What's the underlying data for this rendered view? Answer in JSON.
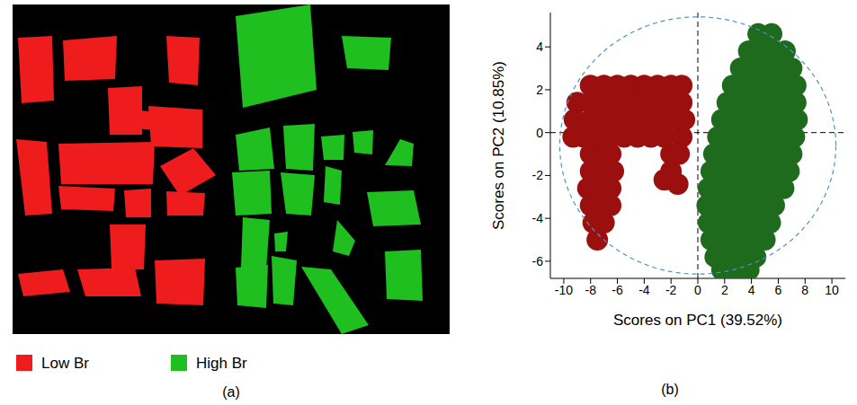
{
  "chart_data": [
    {
      "type": "image",
      "panel": "(a)",
      "legend": "bottom",
      "series": [
        {
          "name": "Low Br",
          "color": "#ee1c1c"
        },
        {
          "name": "High Br",
          "color": "#1fbf1f"
        }
      ]
    },
    {
      "type": "scatter",
      "panel": "(b)",
      "x_label": "Scores on PC1 (39.52%)",
      "y_label": "Scores on PC2 (10.85%)",
      "xlim": [
        -11,
        11
      ],
      "ylim": [
        -6.8,
        5.6
      ],
      "xticks": [
        -10,
        -8,
        -6,
        -4,
        -2,
        0,
        2,
        4,
        6,
        8,
        10
      ],
      "yticks": [
        -6,
        -4,
        -2,
        0,
        2,
        4
      ],
      "reference_lines": {
        "x": 0,
        "y": 0
      },
      "confidence_ellipse": {
        "cx": 0,
        "cy": -0.6,
        "rx": 10.3,
        "ry": 6.0
      },
      "series": [
        {
          "name": "Low Br",
          "color": "#9b0f0f",
          "values": [
            [
              -8,
              2.2
            ],
            [
              -7,
              2.2
            ],
            [
              -6,
              2.2
            ],
            [
              -5,
              2.2
            ],
            [
              -4,
              2.2
            ],
            [
              -3,
              2.2
            ],
            [
              -2,
              2.2
            ],
            [
              -1.2,
              2.2
            ],
            [
              -9,
              1.4
            ],
            [
              -8,
              1.4
            ],
            [
              -7,
              1.4
            ],
            [
              -6,
              1.4
            ],
            [
              -5,
              1.4
            ],
            [
              -4,
              1.4
            ],
            [
              -3,
              1.4
            ],
            [
              -2,
              1.4
            ],
            [
              -1.2,
              1.4
            ],
            [
              -9.2,
              0.6
            ],
            [
              -8,
              0.6
            ],
            [
              -7,
              0.6
            ],
            [
              -6,
              0.6
            ],
            [
              -5,
              0.6
            ],
            [
              -4,
              0.6
            ],
            [
              -3,
              0.6
            ],
            [
              -2,
              0.6
            ],
            [
              -1,
              0.6
            ],
            [
              -9.3,
              -0.2
            ],
            [
              -8.5,
              -0.2
            ],
            [
              -7.5,
              -0.2
            ],
            [
              -6.5,
              -0.2
            ],
            [
              -5.5,
              -0.2
            ],
            [
              -4.5,
              -0.2
            ],
            [
              -3.5,
              -0.2
            ],
            [
              -2.5,
              -0.2
            ],
            [
              -1.2,
              -0.2
            ],
            [
              -8,
              -1.0
            ],
            [
              -7,
              -1.0
            ],
            [
              -6.5,
              -1.0
            ],
            [
              -2,
              -1.0
            ],
            [
              -1.4,
              -1.0
            ],
            [
              -8,
              -1.8
            ],
            [
              -7,
              -1.8
            ],
            [
              -6.3,
              -1.8
            ],
            [
              -8.2,
              -2.6
            ],
            [
              -7.3,
              -2.6
            ],
            [
              -6.5,
              -2.6
            ],
            [
              -8,
              -3.4
            ],
            [
              -7.2,
              -3.4
            ],
            [
              -6.5,
              -3.4
            ],
            [
              -7.8,
              -4.2
            ],
            [
              -7,
              -4.2
            ],
            [
              -7.5,
              -5.0
            ],
            [
              -2,
              -1.8
            ],
            [
              -1.5,
              -2.4
            ],
            [
              -2.5,
              -2.2
            ]
          ]
        },
        {
          "name": "High Br",
          "color": "#1e6b1e",
          "values": [
            [
              4.5,
              4.6
            ],
            [
              5.5,
              4.6
            ],
            [
              3.8,
              3.8
            ],
            [
              4.8,
              3.8
            ],
            [
              5.8,
              3.8
            ],
            [
              6.5,
              3.8
            ],
            [
              3.2,
              3.0
            ],
            [
              4.2,
              3.0
            ],
            [
              5.2,
              3.0
            ],
            [
              6.2,
              3.0
            ],
            [
              7,
              3.0
            ],
            [
              2.6,
              2.2
            ],
            [
              3.6,
              2.2
            ],
            [
              4.6,
              2.2
            ],
            [
              5.6,
              2.2
            ],
            [
              6.6,
              2.2
            ],
            [
              7.3,
              2.2
            ],
            [
              2.2,
              1.4
            ],
            [
              3.2,
              1.4
            ],
            [
              4.2,
              1.4
            ],
            [
              5.2,
              1.4
            ],
            [
              6.2,
              1.4
            ],
            [
              7.3,
              1.4
            ],
            [
              1.8,
              0.6
            ],
            [
              2.8,
              0.6
            ],
            [
              3.8,
              0.6
            ],
            [
              4.8,
              0.6
            ],
            [
              5.8,
              0.6
            ],
            [
              6.8,
              0.6
            ],
            [
              7.4,
              0.6
            ],
            [
              1.5,
              -0.2
            ],
            [
              2.5,
              -0.2
            ],
            [
              3.5,
              -0.2
            ],
            [
              4.5,
              -0.2
            ],
            [
              5.5,
              -0.2
            ],
            [
              6.5,
              -0.2
            ],
            [
              7.2,
              -0.2
            ],
            [
              1.2,
              -1.0
            ],
            [
              2.2,
              -1.0
            ],
            [
              3.2,
              -1.0
            ],
            [
              4.2,
              -1.0
            ],
            [
              5.2,
              -1.0
            ],
            [
              6.2,
              -1.0
            ],
            [
              7,
              -1.0
            ],
            [
              1,
              -1.8
            ],
            [
              2,
              -1.8
            ],
            [
              3,
              -1.8
            ],
            [
              4,
              -1.8
            ],
            [
              5,
              -1.8
            ],
            [
              6,
              -1.8
            ],
            [
              6.8,
              -1.8
            ],
            [
              0.8,
              -2.6
            ],
            [
              1.8,
              -2.6
            ],
            [
              2.8,
              -2.6
            ],
            [
              3.8,
              -2.6
            ],
            [
              4.8,
              -2.6
            ],
            [
              5.8,
              -2.6
            ],
            [
              6.4,
              -2.6
            ],
            [
              0.7,
              -3.4
            ],
            [
              1.7,
              -3.4
            ],
            [
              2.7,
              -3.4
            ],
            [
              3.7,
              -3.4
            ],
            [
              4.7,
              -3.4
            ],
            [
              5.7,
              -3.4
            ],
            [
              0.8,
              -4.2
            ],
            [
              1.8,
              -4.2
            ],
            [
              2.8,
              -4.2
            ],
            [
              3.8,
              -4.2
            ],
            [
              4.8,
              -4.2
            ],
            [
              5.4,
              -4.2
            ],
            [
              1,
              -5.0
            ],
            [
              2,
              -5.0
            ],
            [
              3,
              -5.0
            ],
            [
              4,
              -5.0
            ],
            [
              5,
              -5.0
            ],
            [
              1.3,
              -5.8
            ],
            [
              2.3,
              -5.8
            ],
            [
              3.3,
              -5.8
            ],
            [
              4.3,
              -5.8
            ],
            [
              1.8,
              -6.4
            ],
            [
              2.8,
              -6.4
            ],
            [
              3.8,
              -6.4
            ]
          ]
        }
      ]
    }
  ]
}
